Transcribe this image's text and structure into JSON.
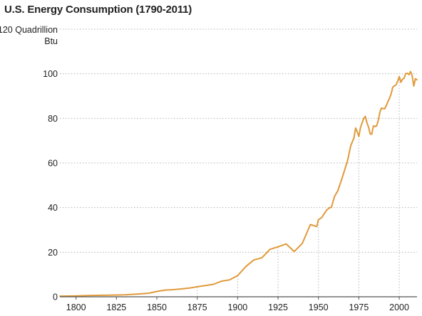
{
  "chart_data": {
    "type": "line",
    "title": "U.S. Energy Consumption (1790-2011)",
    "ylabel_lines": [
      "120 Quadrillion",
      "Btu"
    ],
    "xlim": [
      1790,
      2011
    ],
    "ylim": [
      0,
      120
    ],
    "y_ticks": [
      0,
      20,
      40,
      60,
      80,
      100
    ],
    "x_ticks": [
      1800,
      1825,
      1850,
      1875,
      1900,
      1925,
      1950,
      1975,
      2000
    ],
    "vertical_markers": [
      1875,
      1900,
      1925,
      1950,
      1975,
      2000
    ],
    "grid": "horizontal dotted",
    "series": [
      {
        "color": "#e09a3b",
        "x": [
          1790,
          1800,
          1810,
          1820,
          1830,
          1840,
          1845,
          1850,
          1855,
          1860,
          1865,
          1870,
          1875,
          1880,
          1885,
          1890,
          1895,
          1900,
          1905,
          1910,
          1915,
          1920,
          1925,
          1930,
          1935,
          1940,
          1945,
          1949,
          1950,
          1952,
          1955,
          1957,
          1958,
          1960,
          1962,
          1965,
          1968,
          1970,
          1972,
          1973,
          1974,
          1975,
          1976,
          1977,
          1978,
          1979,
          1980,
          1981,
          1982,
          1983,
          1984,
          1985,
          1986,
          1987,
          1988,
          1989,
          1990,
          1991,
          1992,
          1993,
          1994,
          1995,
          1996,
          1997,
          1998,
          1999,
          2000,
          2001,
          2002,
          2003,
          2004,
          2005,
          2006,
          2007,
          2008,
          2009,
          2010,
          2011
        ],
        "values": [
          0.3,
          0.4,
          0.6,
          0.7,
          0.9,
          1.3,
          1.6,
          2.4,
          3.0,
          3.2,
          3.5,
          3.9,
          4.5,
          5.0,
          5.6,
          7.0,
          7.6,
          9.5,
          13.5,
          16.5,
          17.5,
          21.3,
          22.4,
          23.7,
          20.3,
          23.9,
          32.4,
          31.5,
          34.6,
          35.5,
          38.8,
          40.0,
          40.1,
          45.1,
          47.5,
          54.0,
          61.0,
          67.8,
          71.3,
          75.7,
          74.0,
          71.9,
          75.9,
          77.9,
          79.9,
          80.9,
          78.1,
          76.1,
          73.1,
          72.9,
          76.6,
          76.4,
          76.6,
          79.0,
          82.7,
          84.6,
          84.4,
          84.3,
          85.8,
          87.5,
          89.1,
          91.0,
          94.0,
          94.6,
          95.0,
          96.6,
          98.8,
          96.2,
          97.6,
          98.0,
          100.1,
          100.2,
          99.6,
          101.0,
          99.2,
          94.5,
          97.8,
          97.3
        ]
      }
    ]
  }
}
